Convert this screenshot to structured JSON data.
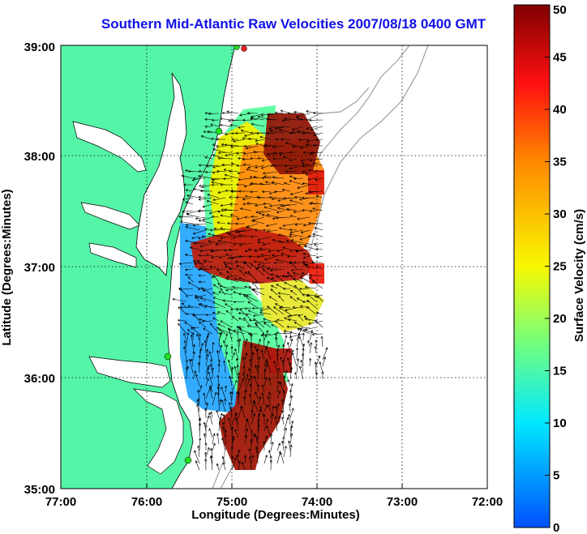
{
  "title": "Southern Mid-Atlantic Raw Velocities 2007/08/18 0400 GMT",
  "x_axis": {
    "label": "Longitude (Degrees:Minutes)",
    "ticks": [
      "77:00",
      "76:00",
      "75:00",
      "74:00",
      "73:00",
      "72:00"
    ]
  },
  "y_axis": {
    "label": "Latitude (Degrees:Minutes)",
    "ticks": [
      "39:00",
      "38:00",
      "37:00",
      "36:00",
      "35:00"
    ]
  },
  "colorbar": {
    "label": "Surface Velocity (cm/s)",
    "ticks": [
      "50",
      "45",
      "40",
      "35",
      "30",
      "25",
      "20",
      "15",
      "10",
      "5",
      "0"
    ],
    "min": 0,
    "max": 50
  },
  "colors": {
    "land": "#55f5a8",
    "title": "#1010e6",
    "station_green": "#22dd22",
    "station_red": "#ee2222"
  },
  "chart_data": {
    "type": "heatmap",
    "title": "Southern Mid-Atlantic Raw Velocities 2007/08/18 0400 GMT",
    "xlabel": "Longitude (Degrees:Minutes)",
    "ylabel": "Latitude (Degrees:Minutes)",
    "xlim": [
      -77,
      -72
    ],
    "ylim": [
      35,
      39
    ],
    "grid": true,
    "zlabel": "Surface Velocity (cm/s)",
    "zlim": [
      0,
      50
    ]
  }
}
